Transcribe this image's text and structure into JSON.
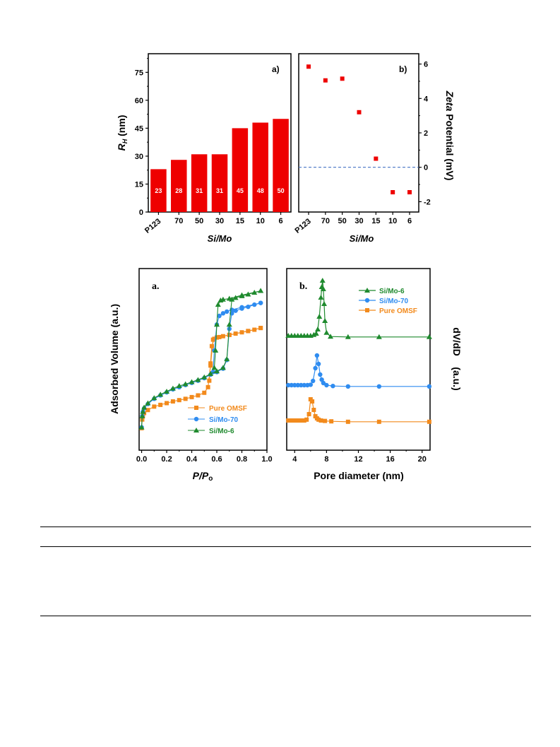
{
  "panel_labels": {
    "top_a": "a)",
    "top_b": "b)",
    "bot_a": "a.",
    "bot_b": "b."
  },
  "chart_data": [
    {
      "type": "bar",
      "panel": "a)",
      "categories": [
        "P123",
        "70",
        "50",
        "30",
        "15",
        "10",
        "6"
      ],
      "values": [
        23,
        28,
        31,
        31,
        45,
        48,
        50
      ],
      "data_labels": [
        "23",
        "28",
        "31",
        "31",
        "45",
        "48",
        "50"
      ],
      "xlabel": "Si/Mo",
      "ylabel_main": "R",
      "ylabel_sub": "H",
      "ylabel_unit": " (nm)",
      "ylim": [
        0,
        85
      ],
      "yticks": [
        "0",
        "15",
        "30",
        "45",
        "60",
        "75"
      ],
      "color": "#ee0000"
    },
    {
      "type": "scatter",
      "panel": "b)",
      "categories": [
        "P123",
        "70",
        "50",
        "30",
        "15",
        "10",
        "6"
      ],
      "values": [
        5.85,
        5.05,
        5.15,
        3.2,
        0.5,
        -1.45,
        -1.45
      ],
      "xlabel": "Si/Mo",
      "ylabel_italic": "Zeta",
      "ylabel_rest": " Potential (mV)",
      "ylim": [
        -2.6,
        6.6
      ],
      "yticks": [
        "-2",
        "0",
        "2",
        "4",
        "6"
      ],
      "reference_line": 0,
      "marker_color": "#ee0000",
      "line_color": "#4472c4"
    },
    {
      "type": "line",
      "panel": "a.",
      "xlabel_italic": "P/P",
      "xlabel_sub": "o",
      "ylabel": "Adsorbed Volume (a.u.)",
      "xlim": [
        -0.02,
        1.0
      ],
      "xticks": [
        "0.0",
        "0.2",
        "0.4",
        "0.6",
        "0.8",
        "1.0"
      ],
      "legend_position": "bottom-right",
      "series": [
        {
          "name": "Pure OMSF",
          "color": "#f28a1c",
          "marker": "square",
          "x": [
            0.0,
            0.005,
            0.01,
            0.02,
            0.05,
            0.1,
            0.15,
            0.2,
            0.25,
            0.3,
            0.35,
            0.4,
            0.45,
            0.5,
            0.53,
            0.55,
            0.57,
            0.6,
            0.65,
            0.7,
            0.75,
            0.8,
            0.85,
            0.9,
            0.95
          ],
          "y": [
            10,
            30,
            38,
            45,
            52,
            60,
            64,
            68,
            72,
            75,
            78,
            82,
            86,
            92,
            105,
            155,
            215,
            220,
            223,
            226,
            229,
            232,
            235,
            238,
            242
          ],
          "desorption_x": [
            0.95,
            0.85,
            0.7,
            0.62,
            0.6,
            0.58,
            0.56,
            0.55,
            0.54
          ],
          "desorption_y": [
            242,
            235,
            226,
            221,
            220,
            217,
            200,
            160,
            120
          ]
        },
        {
          "name": "Si/Mo-70",
          "color": "#2f8cf0",
          "marker": "circle",
          "x": [
            0.0,
            0.005,
            0.01,
            0.02,
            0.05,
            0.1,
            0.15,
            0.2,
            0.25,
            0.3,
            0.35,
            0.4,
            0.45,
            0.5,
            0.55,
            0.6,
            0.65,
            0.68,
            0.7,
            0.72,
            0.75,
            0.8,
            0.85,
            0.9,
            0.95
          ],
          "y": [
            12,
            38,
            48,
            56,
            66,
            78,
            86,
            93,
            100,
            105,
            110,
            115,
            120,
            126,
            134,
            140,
            148,
            168,
            240,
            276,
            282,
            287,
            291,
            296,
            300
          ],
          "desorption_x": [
            0.95,
            0.8,
            0.72,
            0.68,
            0.65,
            0.62,
            0.6,
            0.58,
            0.57
          ],
          "desorption_y": [
            300,
            290,
            284,
            280,
            276,
            270,
            250,
            190,
            140
          ]
        },
        {
          "name": "Si/Mo-6",
          "color": "#1f8a2e",
          "marker": "triangle",
          "x": [
            0.0,
            0.005,
            0.01,
            0.02,
            0.05,
            0.1,
            0.15,
            0.2,
            0.25,
            0.3,
            0.35,
            0.4,
            0.45,
            0.5,
            0.55,
            0.6,
            0.65,
            0.68,
            0.7,
            0.72,
            0.75,
            0.8,
            0.85,
            0.9,
            0.95
          ],
          "y": [
            12,
            38,
            48,
            58,
            68,
            80,
            88,
            95,
            102,
            108,
            112,
            117,
            122,
            128,
            136,
            142,
            150,
            170,
            250,
            308,
            312,
            316,
            320,
            324,
            328
          ],
          "desorption_x": [
            0.95,
            0.8,
            0.7,
            0.65,
            0.63,
            0.61,
            0.6,
            0.59,
            0.58
          ],
          "desorption_y": [
            328,
            318,
            310,
            308,
            306,
            296,
            250,
            190,
            150
          ]
        }
      ]
    },
    {
      "type": "line",
      "panel": "b.",
      "xlabel": "Pore diameter (nm)",
      "ylabel": "dV/dD    (a.u.)",
      "xlim": [
        3,
        21
      ],
      "xticks": [
        "4",
        "8",
        "12",
        "16",
        "20"
      ],
      "legend_position": "top-right",
      "series": [
        {
          "name": "Si/Mo-6",
          "color": "#1f8a2e",
          "marker": "triangle",
          "offset": 2.0,
          "x": [
            3.2,
            3.6,
            4.0,
            4.4,
            4.8,
            5.2,
            5.6,
            6.0,
            6.4,
            6.7,
            6.9,
            7.1,
            7.3,
            7.4,
            7.5,
            7.6,
            7.7,
            7.8,
            8.0,
            8.5,
            10.7,
            14.6,
            20.9
          ],
          "y": [
            0.05,
            0.05,
            0.05,
            0.05,
            0.05,
            0.05,
            0.05,
            0.05,
            0.07,
            0.1,
            0.2,
            0.5,
            0.95,
            1.2,
            1.35,
            1.15,
            0.8,
            0.4,
            0.12,
            0.03,
            0.02,
            0.02,
            0.02
          ]
        },
        {
          "name": "Si/Mo-70",
          "color": "#2f8cf0",
          "marker": "circle",
          "offset": 1.0,
          "x": [
            3.2,
            3.6,
            4.0,
            4.4,
            4.8,
            5.2,
            5.6,
            6.0,
            6.3,
            6.6,
            6.8,
            7.0,
            7.2,
            7.4,
            7.6,
            8.0,
            8.8,
            10.7,
            14.6,
            20.9
          ],
          "y": [
            0.05,
            0.05,
            0.05,
            0.05,
            0.05,
            0.05,
            0.05,
            0.06,
            0.15,
            0.45,
            0.75,
            0.55,
            0.3,
            0.18,
            0.1,
            0.05,
            0.03,
            0.02,
            0.02,
            0.02
          ]
        },
        {
          "name": "Pure OMSF",
          "color": "#f28a1c",
          "marker": "square",
          "offset": 0.0,
          "x": [
            3.2,
            3.6,
            4.0,
            4.4,
            4.8,
            5.2,
            5.5,
            5.8,
            6.0,
            6.2,
            6.4,
            6.6,
            6.8,
            7.0,
            7.3,
            7.8,
            8.6,
            10.7,
            14.6,
            20.9
          ],
          "y": [
            0.05,
            0.05,
            0.05,
            0.05,
            0.05,
            0.05,
            0.07,
            0.2,
            0.55,
            0.5,
            0.3,
            0.15,
            0.1,
            0.07,
            0.05,
            0.04,
            0.03,
            0.02,
            0.02,
            0.02
          ]
        }
      ]
    }
  ]
}
